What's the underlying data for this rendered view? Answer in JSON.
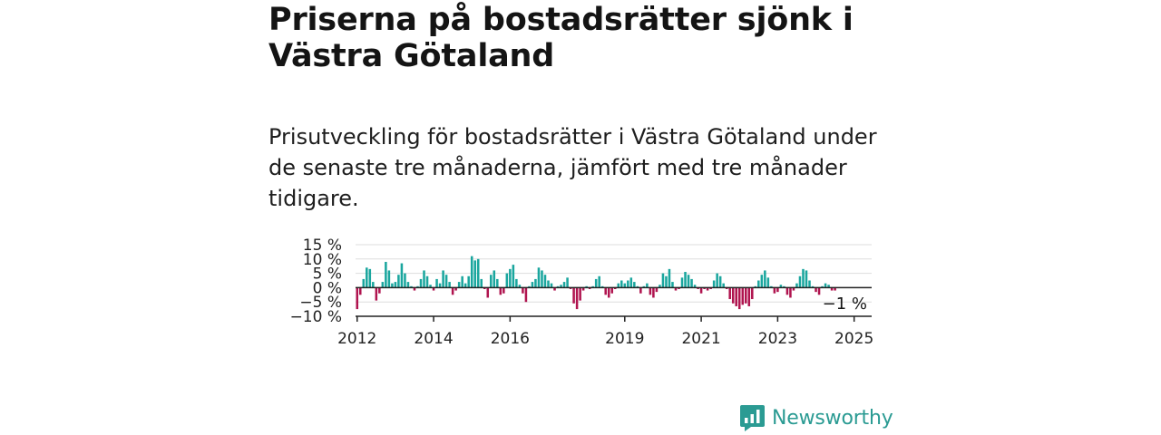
{
  "title": "Priserna på bostadsrätter sjönk i Västra Götaland",
  "subtitle": "Prisutveckling för bostadsrätter i Västra Götaland under de senaste tre månaderna, jämfört med tre månader tidigare.",
  "brand": {
    "name": "Newsworthy",
    "logo_icon": "newsworthy-logo-icon",
    "color": "#2b9b93"
  },
  "chart_data": {
    "type": "bar",
    "x_start": "2012-01",
    "x_end": "2025-06",
    "x_unit": "month",
    "ylim": [
      -10,
      15
    ],
    "y_ticks": [
      15,
      10,
      5,
      0,
      -5,
      -10
    ],
    "y_tick_labels": [
      "15 %",
      "10 %",
      "5 %",
      "0 %",
      "−5 %",
      "−10 %"
    ],
    "x_ticks": [
      "2012",
      "2014",
      "2016",
      "2019",
      "2021",
      "2023",
      "2025"
    ],
    "grid": true,
    "colors": {
      "positive": "#1aa69e",
      "negative": "#b0144f",
      "grid": "#dddddd",
      "axis": "#222222"
    },
    "annotation": "−1 %",
    "values": [
      -7.5,
      -2.5,
      3,
      7,
      6.5,
      2,
      -4.5,
      -2,
      2,
      9,
      6,
      1.5,
      2,
      4.5,
      8.5,
      5,
      2,
      0.5,
      -1,
      0.5,
      3,
      6,
      4,
      1,
      -1,
      3,
      1.5,
      6,
      4.5,
      2,
      -2.5,
      -1,
      2,
      4,
      1.5,
      4,
      11,
      9.5,
      10,
      3,
      -0.5,
      -3.5,
      4.5,
      6,
      3,
      -2.5,
      -2,
      5,
      6.5,
      8,
      3,
      1,
      -2,
      -5,
      0.5,
      2,
      3,
      7,
      6,
      4.5,
      2.5,
      1.5,
      -1,
      0.5,
      1,
      2,
      3.5,
      -0.5,
      -5.5,
      -7.5,
      -4.5,
      -1,
      0.5,
      -0.5,
      0.5,
      3,
      4,
      0.5,
      -2.5,
      -3.5,
      -2,
      -0.5,
      1.5,
      2.5,
      1.5,
      2.5,
      3.5,
      2,
      0.5,
      -2,
      0.5,
      1.5,
      -2.5,
      -3.5,
      -1.5,
      1,
      5,
      4,
      6.5,
      2,
      -1,
      -0.5,
      3.5,
      5.5,
      4.5,
      3,
      1,
      -0.5,
      -2,
      -0.5,
      -1,
      -0.5,
      2.5,
      5,
      4,
      1.5,
      -0.5,
      -4,
      -5.5,
      -6.5,
      -7.5,
      -6,
      -5.5,
      -6.5,
      -4,
      0.5,
      2.5,
      4.5,
      6,
      3.5,
      0.5,
      -2,
      -1.5,
      1,
      0.5,
      -2.5,
      -3.5,
      -1,
      1.5,
      4,
      6.5,
      6,
      2.5,
      0.5,
      -1.5,
      -2.5,
      0.5,
      1.5,
      1,
      -1,
      -1
    ]
  }
}
